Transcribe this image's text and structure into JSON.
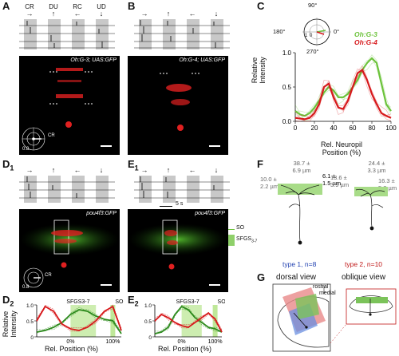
{
  "panels": {
    "A": {
      "label": "A",
      "directions": [
        "CR",
        "DU",
        "RC",
        "UD"
      ],
      "arrows": [
        "→",
        "↑",
        "←",
        "↓"
      ],
      "caption": "Oh:G-3; UAS:GFP",
      "polar_labels": {
        "left": "RC",
        "right": "CR",
        "value": "0.8"
      }
    },
    "B": {
      "label": "B",
      "arrows": [
        "→",
        "↑",
        "←",
        "↓"
      ],
      "caption": "Oh:G-4; UAS:GFP"
    },
    "C": {
      "label": "C",
      "polar": {
        "top": "90°",
        "left": "180°",
        "right": "0°",
        "bottom": "270°",
        "r1": "1",
        "r0": "0"
      },
      "legend": [
        {
          "name": "Oh:G-3",
          "color": "#6cc33b"
        },
        {
          "name": "Oh:G-4",
          "color": "#d7191c"
        }
      ],
      "ylabel_line1": "Relative",
      "ylabel_line2": "Intensity",
      "xlabel_line1": "Rel. Neuropil",
      "xlabel_line2": "Position (%)"
    },
    "D1": {
      "label": "D",
      "sub": "1",
      "arrows": [
        "→",
        "↑",
        "←",
        "↓"
      ],
      "caption": "pou4f3:GFP",
      "polar_labels": {
        "left": "RC",
        "right": "CR",
        "value": "0.8"
      }
    },
    "E1": {
      "label": "E",
      "sub": "1",
      "arrows": [
        "→",
        "↑",
        "←",
        "↓"
      ],
      "caption": "pou4f3:GFP",
      "time_scale": "5 s",
      "layer_labels": {
        "so": "SO",
        "sfgs": "SFGS"
      },
      "sfgs_sub": "3-7"
    },
    "D2": {
      "label": "D",
      "sub": "2",
      "ylabel_line1": "Relative",
      "ylabel_line2": "Intensity",
      "xlabel": "Rel. Position (%)",
      "region_sfgs": "SFGS",
      "region_sfgs_sub": "3-7",
      "region_so": "SO",
      "xticks": [
        "0%",
        "100%"
      ],
      "yticks": [
        "0",
        "0.5",
        "1.0"
      ]
    },
    "E2": {
      "label": "E",
      "sub": "2",
      "xlabel": "Rel. Position (%)",
      "region_sfgs": "SFGS",
      "region_sfgs_sub": "3-7",
      "region_so": "SO",
      "xticks": [
        "0%",
        "100%"
      ],
      "yticks": [
        "0",
        "0.5",
        "1.0"
      ]
    },
    "F": {
      "label": "F",
      "type1": {
        "top": "38.7 ±",
        "top2": "6.9 µm",
        "left": "10.0 ±",
        "left2": "2.2 µm",
        "right": "6.1 ±",
        "right2": "1.5 µm",
        "name": "type 1, n=8"
      },
      "type2": {
        "top": "24.4 ±",
        "top2": "3.3 µm",
        "left": "13.6 ±",
        "left2": "3.9 µm",
        "right": "16.3 ±",
        "right2": "5.8 µm",
        "name": "type 2, n=10"
      }
    },
    "G": {
      "label": "G",
      "dorsal": "dorsal view",
      "oblique": "oblique view",
      "rostral": "rostral",
      "medial": "medial"
    }
  },
  "chart_data": [
    {
      "type": "line",
      "panel": "C",
      "xlabel": "Rel. Neuropil Position (%)",
      "ylabel": "Relative Intensity",
      "xlim": [
        0,
        100
      ],
      "ylim": [
        0,
        1.0
      ],
      "xticks": [
        0,
        20,
        40,
        60,
        80,
        100
      ],
      "yticks": [
        0.0,
        0.5,
        1.0
      ],
      "x": [
        0,
        5,
        10,
        15,
        20,
        25,
        30,
        35,
        40,
        45,
        50,
        55,
        60,
        65,
        70,
        75,
        80,
        85,
        90,
        95,
        100
      ],
      "series": [
        {
          "name": "Oh:G-3",
          "color": "#6cc33b",
          "values": [
            0.15,
            0.1,
            0.08,
            0.12,
            0.2,
            0.3,
            0.42,
            0.5,
            0.45,
            0.35,
            0.35,
            0.4,
            0.5,
            0.6,
            0.75,
            0.85,
            0.92,
            0.85,
            0.55,
            0.25,
            0.15
          ]
        },
        {
          "name": "Oh:G-4",
          "color": "#d7191c",
          "values": [
            0.05,
            0.04,
            0.03,
            0.05,
            0.12,
            0.25,
            0.5,
            0.55,
            0.35,
            0.2,
            0.18,
            0.3,
            0.5,
            0.7,
            0.75,
            0.6,
            0.4,
            0.25,
            0.12,
            0.08,
            0.05
          ]
        }
      ]
    },
    {
      "type": "line",
      "panel": "D2",
      "xlabel": "Rel. Position (%)",
      "ylabel": "Relative Intensity",
      "ylim": [
        0,
        1.0
      ],
      "x": [
        -80,
        -60,
        -40,
        -20,
        0,
        20,
        40,
        60,
        80,
        100,
        120
      ],
      "series": [
        {
          "name": "",
          "color": "#2e8b1e",
          "values": [
            0.15,
            0.2,
            0.3,
            0.45,
            0.7,
            0.85,
            0.8,
            0.65,
            0.55,
            0.5,
            0.1
          ]
        },
        {
          "name": "",
          "color": "#d7191c",
          "values": [
            0.5,
            0.95,
            0.8,
            0.4,
            0.25,
            0.2,
            0.3,
            0.5,
            0.8,
            0.95,
            0.2
          ]
        }
      ]
    },
    {
      "type": "line",
      "panel": "E2",
      "xlabel": "Rel. Position (%)",
      "ylabel": "Relative Intensity",
      "ylim": [
        0,
        1.0
      ],
      "x": [
        -80,
        -60,
        -40,
        -20,
        0,
        20,
        40,
        60,
        80,
        100,
        120
      ],
      "series": [
        {
          "name": "",
          "color": "#2e8b1e",
          "values": [
            0.1,
            0.15,
            0.3,
            0.7,
            0.95,
            0.85,
            0.6,
            0.45,
            0.3,
            0.25,
            0.15
          ]
        },
        {
          "name": "",
          "color": "#d7191c",
          "values": [
            0.5,
            0.7,
            0.6,
            0.45,
            0.35,
            0.3,
            0.45,
            0.6,
            0.75,
            0.55,
            0.15
          ]
        }
      ]
    }
  ]
}
